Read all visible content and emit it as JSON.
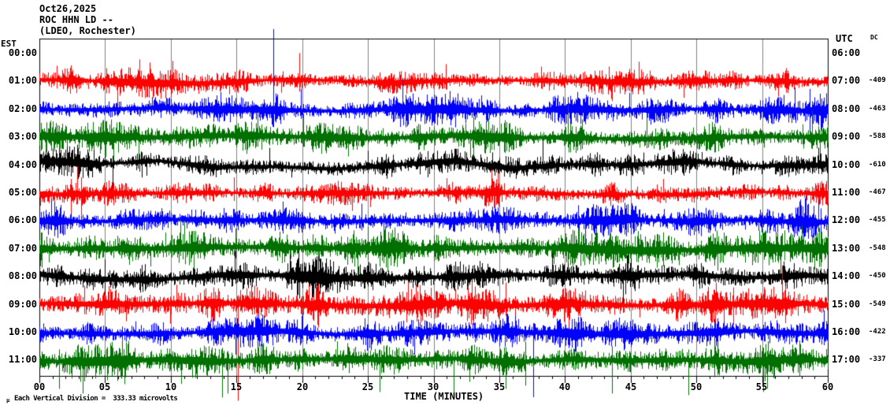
{
  "header": {
    "date": "Oct26,2025",
    "station_line": "ROC HHN LD --",
    "network_line": "(LDEO, Rochester)"
  },
  "left_axis": {
    "timezone": "EST",
    "labels": [
      "00:00",
      "01:00",
      "02:00",
      "03:00",
      "04:00",
      "05:00",
      "06:00",
      "07:00",
      "08:00",
      "09:00",
      "10:00",
      "11:00"
    ]
  },
  "right_axis": {
    "timezone": "UTC",
    "dc_header": "DC",
    "labels": [
      "06:00",
      "07:00",
      "08:00",
      "09:00",
      "10:00",
      "11:00",
      "12:00",
      "13:00",
      "14:00",
      "15:00",
      "16:00",
      "17:00"
    ],
    "dc_values": [
      "",
      "-409",
      "-463",
      "-588",
      "-610",
      "-467",
      "-455",
      "-548",
      "-450",
      "-549",
      "-422",
      "-337"
    ]
  },
  "bottom_axis": {
    "title": "TIME (MINUTES)",
    "tick_labels": [
      "00",
      "05",
      "10",
      "15",
      "20",
      "25",
      "30",
      "35",
      "40",
      "45",
      "50",
      "55",
      "60"
    ]
  },
  "footer": {
    "mu_mark": "μ",
    "scale_note": "Each Vertical Division =  333.33 microvolts"
  },
  "chart_data": {
    "type": "helicorder-seismogram",
    "date": "Oct26,2025",
    "station": "ROC HHN LD --",
    "network": "(LDEO, Rochester)",
    "timezone_left": "EST",
    "timezone_right": "UTC",
    "minutes_per_line": 60,
    "x_axis": {
      "label": "TIME (MINUTES)",
      "min": 0,
      "max": 60,
      "major_tick": 5,
      "minor_tick": 1
    },
    "vertical_division_microvolts": 333.33,
    "grid_color": "#808080",
    "palette": {
      "red": "#ff0000",
      "blue": "#0000ff",
      "green": "#007000",
      "black": "#000000"
    },
    "rows": [
      {
        "est_start": "00:00",
        "utc_end": "07:00",
        "dc": -409,
        "color": "#ff0000",
        "amp": 8.5,
        "seed": 101,
        "bursts": [
          [
            1,
            2,
            1.6
          ],
          [
            8.5,
            3,
            1.4
          ],
          [
            20,
            1.2,
            1.7
          ],
          [
            31,
            1.5,
            1.5
          ],
          [
            46,
            1.5,
            1.5
          ],
          [
            57,
            2,
            1.3
          ]
        ],
        "spikes": [
          [
            1.3,
            20,
            9
          ],
          [
            7.6,
            28,
            9
          ],
          [
            8.4,
            24,
            8
          ],
          [
            10.1,
            26,
            9
          ],
          [
            19.8,
            36,
            13
          ],
          [
            30.9,
            22,
            10
          ],
          [
            38.2,
            19,
            9
          ],
          [
            45.6,
            25,
            11
          ],
          [
            56.8,
            17,
            9
          ]
        ]
      },
      {
        "est_start": "01:00",
        "utc_end": "08:00",
        "dc": -463,
        "color": "#0000ff",
        "amp": 9.5,
        "seed": 202,
        "bursts": [
          [
            18,
            1,
            1.6
          ],
          [
            28,
            6,
            1.4
          ],
          [
            44,
            4,
            1.2
          ],
          [
            58,
            2.5,
            1.7
          ]
        ],
        "spikes": [
          [
            13.8,
            22,
            10
          ],
          [
            17.8,
            102,
            20
          ],
          [
            19.9,
            26,
            12
          ],
          [
            30,
            19,
            10
          ],
          [
            44.9,
            21,
            10
          ],
          [
            57.5,
            28,
            13
          ],
          [
            58.6,
            26,
            30
          ]
        ]
      },
      {
        "est_start": "02:00",
        "utc_end": "09:00",
        "dc": -588,
        "color": "#007000",
        "amp": 10.5,
        "seed": 303,
        "bursts": [
          [
            5,
            3,
            1.2
          ],
          [
            17,
            3,
            1.5
          ],
          [
            33,
            2,
            1.5
          ],
          [
            40,
            2,
            1.6
          ],
          [
            46,
            3,
            1.4
          ],
          [
            59,
            1.5,
            1.6
          ]
        ],
        "spikes": [
          [
            16.6,
            26,
            12
          ],
          [
            20.1,
            30,
            12
          ],
          [
            33,
            26,
            40
          ],
          [
            40.2,
            42,
            13
          ],
          [
            46.2,
            30,
            14
          ],
          [
            58.8,
            34,
            15
          ]
        ]
      },
      {
        "est_start": "03:00",
        "utc_end": "10:00",
        "dc": -610,
        "color": "#000000",
        "amp": 9,
        "wander": 6,
        "seed": 404,
        "bursts": [
          [
            3,
            2,
            1.4
          ],
          [
            17,
            2,
            1.2
          ],
          [
            36,
            5,
            1.5
          ],
          [
            38.5,
            1.2,
            1.7
          ]
        ],
        "spikes": [
          [
            2.9,
            26,
            12
          ],
          [
            5.6,
            12,
            30
          ],
          [
            17.5,
            22,
            10
          ],
          [
            25,
            18,
            10
          ],
          [
            38.3,
            30,
            11
          ],
          [
            46,
            16,
            12
          ]
        ]
      },
      {
        "est_start": "04:00",
        "utc_end": "11:00",
        "dc": -467,
        "color": "#ff0000",
        "amp": 8,
        "seed": 505,
        "bursts": [
          [
            2.8,
            1.2,
            1.7
          ],
          [
            25,
            4,
            1.2
          ],
          [
            35,
            1.6,
            1.7
          ]
        ],
        "spikes": [
          [
            2.4,
            18,
            40
          ],
          [
            2.9,
            34,
            14
          ],
          [
            3.2,
            20,
            28
          ],
          [
            14.8,
            20,
            10
          ],
          [
            34.4,
            30,
            12
          ],
          [
            34.9,
            26,
            14
          ],
          [
            47.5,
            18,
            9
          ]
        ]
      },
      {
        "est_start": "05:00",
        "utc_end": "12:00",
        "dc": -455,
        "color": "#0000ff",
        "amp": 9.5,
        "seed": 606,
        "bursts": [
          [
            1,
            1.5,
            1.5
          ],
          [
            14,
            3,
            1.3
          ],
          [
            24,
            3,
            1.3
          ],
          [
            45,
            6,
            1.25
          ],
          [
            58.5,
            2,
            1.7
          ]
        ],
        "spikes": [
          [
            0.9,
            28,
            12
          ],
          [
            24.5,
            22,
            12
          ],
          [
            41,
            20,
            10
          ],
          [
            58.3,
            32,
            15
          ],
          [
            59.3,
            28,
            14
          ]
        ]
      },
      {
        "est_start": "06:00",
        "utc_end": "13:00",
        "dc": -548,
        "color": "#007000",
        "amp": 11.5,
        "seed": 707,
        "bursts": [
          [
            15,
            2,
            1.4
          ],
          [
            25,
            3,
            1.4
          ],
          [
            41,
            3,
            1.4
          ],
          [
            50,
            4,
            1.25
          ],
          [
            57,
            3,
            1.4
          ]
        ],
        "spikes": [
          [
            14.9,
            26,
            12
          ],
          [
            25,
            28,
            14
          ],
          [
            40.6,
            24,
            30
          ],
          [
            56.4,
            16,
            34
          ],
          [
            58,
            30,
            12
          ]
        ]
      },
      {
        "est_start": "07:00",
        "utc_end": "14:00",
        "dc": -450,
        "color": "#000000",
        "amp": 11.5,
        "wander": 4,
        "seed": 808,
        "bursts": [
          [
            5,
            2,
            1.25
          ],
          [
            21,
            3,
            1.25
          ],
          [
            34,
            4,
            1.25
          ],
          [
            45,
            5,
            1.15
          ]
        ],
        "spikes": [
          [
            5,
            22,
            12
          ],
          [
            21,
            24,
            12
          ],
          [
            33.5,
            20,
            14
          ],
          [
            39,
            30,
            10
          ]
        ]
      },
      {
        "est_start": "08:00",
        "utc_end": "15:00",
        "dc": -549,
        "color": "#ff0000",
        "amp": 11.5,
        "seed": 909,
        "bursts": [
          [
            3,
            2,
            1.4
          ],
          [
            21,
            4,
            1.4
          ],
          [
            30,
            8,
            1.3
          ],
          [
            53,
            4,
            1.5
          ]
        ],
        "spikes": [
          [
            3.4,
            24,
            12
          ],
          [
            15.1,
            12,
            122
          ],
          [
            20.5,
            26,
            12
          ],
          [
            35.5,
            28,
            14
          ],
          [
            52.8,
            22,
            26
          ],
          [
            56.5,
            50,
            14
          ]
        ]
      },
      {
        "est_start": "09:00",
        "utc_end": "16:00",
        "dc": -422,
        "color": "#0000ff",
        "amp": 10.5,
        "seed": 1010,
        "bursts": [
          [
            14,
            2,
            1.3
          ],
          [
            27,
            3,
            1.2
          ],
          [
            45,
            8,
            1.3
          ],
          [
            59.5,
            0.8,
            1.8
          ]
        ],
        "spikes": [
          [
            14.9,
            12,
            28
          ],
          [
            20,
            24,
            12
          ],
          [
            36.2,
            22,
            12
          ],
          [
            37.6,
            12,
            82
          ],
          [
            59.7,
            28,
            16
          ]
        ]
      },
      {
        "est_start": "10:00",
        "utc_end": "17:00",
        "dc": -337,
        "color": "#007000",
        "amp": 11.5,
        "seed": 1111,
        "bursts": [
          [
            5,
            4,
            1.25
          ],
          [
            15,
            3,
            1.35
          ],
          [
            30,
            6,
            1.3
          ],
          [
            44,
            4,
            1.3
          ],
          [
            55,
            4,
            1.4
          ]
        ],
        "spikes": [
          [
            1.5,
            14,
            36
          ],
          [
            3.3,
            12,
            42
          ],
          [
            13.9,
            16,
            47
          ],
          [
            14.3,
            12,
            42
          ],
          [
            25.9,
            14,
            40
          ],
          [
            31.5,
            12,
            46
          ],
          [
            37,
            24,
            32
          ],
          [
            43.6,
            18,
            42
          ],
          [
            49.4,
            14,
            44
          ],
          [
            55.1,
            16,
            40
          ],
          [
            55.4,
            12,
            36
          ]
        ]
      }
    ]
  }
}
